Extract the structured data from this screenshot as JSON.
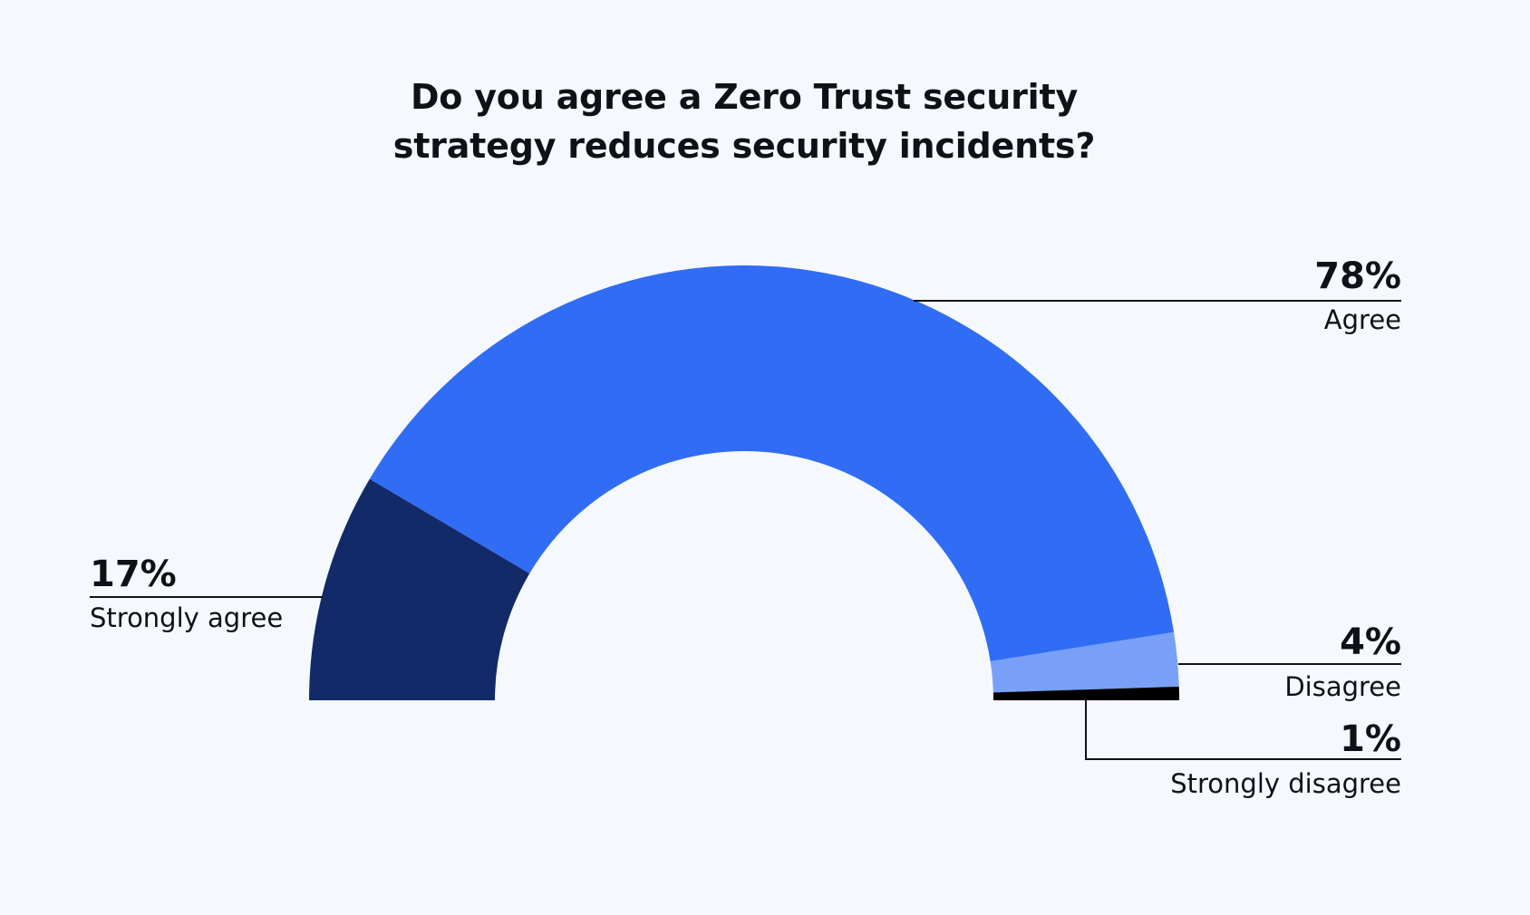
{
  "chart_data": {
    "type": "pie",
    "variant": "half-donut",
    "title": "Do you agree a Zero Trust security\nstrategy reduces security incidents?",
    "unit": "%",
    "series": [
      {
        "name": "Strongly agree",
        "value": 17,
        "label": "17%",
        "color": "#132a68"
      },
      {
        "name": "Agree",
        "value": 78,
        "label": "78%",
        "color": "#316cf4"
      },
      {
        "name": "Disagree",
        "value": 4,
        "label": "4%",
        "color": "#78a0f7"
      },
      {
        "name": "Strongly disagree",
        "value": 1,
        "label": "1%",
        "color": "#000000"
      }
    ]
  }
}
